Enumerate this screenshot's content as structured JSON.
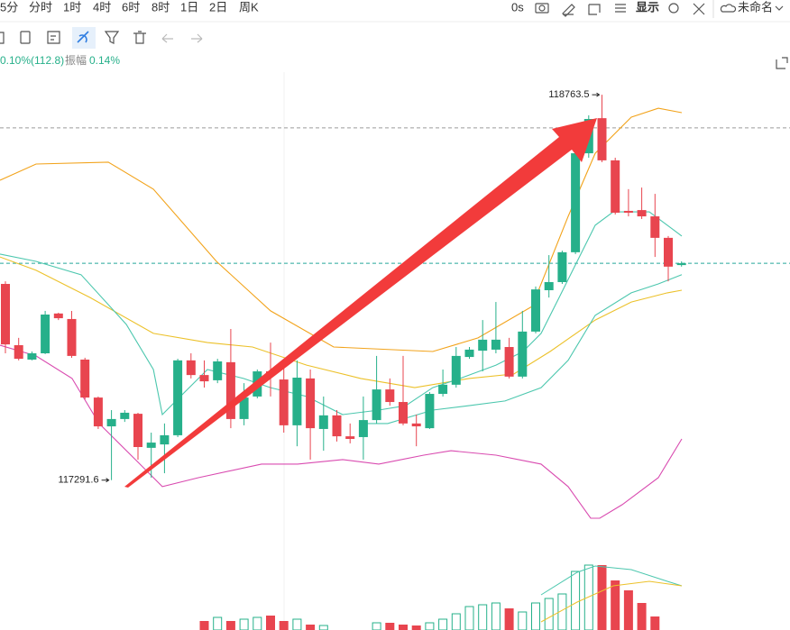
{
  "toolbar": {
    "intervals": [
      "5分",
      "分时",
      "1时",
      "4时",
      "6时",
      "8时",
      "1日",
      "2日",
      "周K"
    ],
    "timer": "0s",
    "display": "显示",
    "workspace": "未命名"
  },
  "info": {
    "change": "0.10%(112.8)",
    "amplitude_label": "振幅",
    "amplitude": "0.14%"
  },
  "chart_data": {
    "type": "candlestick",
    "ylim": [
      117060,
      118850
    ],
    "up_color": "#26b08a",
    "down_color": "#e8454f",
    "categories": [
      null,
      null,
      null,
      null,
      null,
      null,
      null,
      null,
      null,
      null,
      null,
      null,
      null,
      null,
      null,
      null,
      null,
      null,
      null,
      null,
      null,
      null,
      null,
      null,
      null,
      null,
      null,
      null,
      null,
      null,
      null,
      null,
      null,
      null,
      null,
      null,
      null,
      null,
      null,
      null,
      null,
      null,
      null,
      null,
      null,
      null,
      null,
      null,
      null,
      null,
      null,
      null
    ],
    "open": [
      118041,
      117807,
      117752,
      117776,
      117928,
      117907,
      117752,
      117607,
      117497,
      117525,
      117545,
      117415,
      117428,
      117463,
      117749,
      117693,
      117673,
      117742,
      117525,
      117611,
      117707,
      117676,
      117501,
      117680,
      117487,
      117539,
      117459,
      117456,
      117521,
      117638,
      117590,
      117508,
      117490,
      117621,
      117656,
      117762,
      117786,
      117790,
      117800,
      117687,
      117859,
      118017,
      118048,
      118162,
      118540,
      118674,
      118513,
      118320,
      118323,
      118299,
      118217,
      118113
    ],
    "high": [
      118051,
      117835,
      117783,
      117938,
      117931,
      117938,
      117759,
      117611,
      117559,
      117559,
      117549,
      117473,
      117508,
      117755,
      117776,
      117749,
      117755,
      117869,
      117662,
      117714,
      117817,
      117749,
      117749,
      117714,
      117611,
      117559,
      117508,
      117611,
      117766,
      117680,
      117766,
      117542,
      117628,
      117714,
      117800,
      117800,
      117903,
      117972,
      117835,
      117938,
      118031,
      118151,
      118168,
      118547,
      118685,
      118763.5,
      118523,
      118403,
      118409,
      118385,
      118224,
      118127
    ],
    "low": [
      117776,
      117749,
      117749,
      117773,
      117903,
      117759,
      117600,
      117487,
      117291.6,
      117514,
      117370,
      117301,
      117318,
      117456,
      117680,
      117645,
      117662,
      117490,
      117501,
      117604,
      117611,
      117473,
      117421,
      117370,
      117404,
      117439,
      117432,
      117370,
      117508,
      117576,
      117501,
      117421,
      117487,
      117611,
      117645,
      117755,
      117707,
      117776,
      117680,
      117680,
      117852,
      117989,
      118041,
      118155,
      118523,
      118506,
      118306,
      118299,
      118289,
      118144,
      118051,
      118107
    ],
    "close": [
      117810,
      117755,
      117776,
      117924,
      117910,
      117766,
      117607,
      117497,
      117525,
      117549,
      117418,
      117435,
      117463,
      117749,
      117693,
      117669,
      117745,
      117525,
      117607,
      117707,
      117693,
      117501,
      117683,
      117490,
      117539,
      117459,
      117449,
      117521,
      117638,
      117590,
      117508,
      117497,
      117621,
      117656,
      117766,
      117790,
      117828,
      117828,
      117687,
      117859,
      118020,
      118048,
      118162,
      118540,
      118671,
      118513,
      118313,
      118313,
      118299,
      118217,
      118107,
      118120
    ],
    "lines": [
      {
        "color": "#f2a31b",
        "x": [
          -0.41,
          2.31,
          7.76,
          11.16,
          15.92,
          20.0,
          24.76,
          32.24,
          35.65,
          39.73,
          42.45,
          44.49,
          47.21,
          49.25,
          51.02
        ],
        "values": [
          118437,
          118499,
          118506,
          118403,
          118127,
          117938,
          117800,
          117783,
          117835,
          117955,
          118299,
          118540,
          118678,
          118712,
          118695
        ]
      },
      {
        "color": "#ecc12a",
        "x": [
          -0.41,
          2.31,
          6.39,
          11.16,
          15.24,
          18.64,
          22.72,
          26.8,
          30.88,
          34.97,
          38.37,
          41.09,
          44.49,
          47.21,
          49.93,
          51.02
        ],
        "values": [
          118144,
          118093,
          117989,
          117852,
          117817,
          117800,
          117731,
          117680,
          117645,
          117680,
          117697,
          117783,
          117903,
          117972,
          118007,
          118017
        ]
      },
      {
        "color": "#4cc7ae",
        "x": [
          -0.41,
          2.31,
          5.71,
          9.12,
          11.16,
          11.84,
          13.2,
          15.24,
          17.96,
          20.0,
          22.72,
          25.44,
          28.16,
          30.2,
          32.24,
          34.29,
          37.01,
          39.05,
          40.41,
          41.77,
          43.13,
          44.49,
          45.85,
          48.57,
          49.93,
          51.02
        ],
        "values": [
          118155,
          118127,
          118076,
          117886,
          117714,
          117542,
          117611,
          117714,
          117680,
          117645,
          117611,
          117542,
          117559,
          117576,
          117645,
          117680,
          117731,
          117783,
          117852,
          117989,
          118127,
          118265,
          118316,
          118316,
          118265,
          118224
        ]
      },
      {
        "color": "#4cc7ae",
        "x": [
          26.8,
          28.84,
          32.24,
          34.97,
          37.69,
          40.41,
          42.45,
          44.49,
          47.21,
          49.25,
          51.02
        ],
        "values": [
          117508,
          117508,
          117559,
          117576,
          117594,
          117645,
          117749,
          117921,
          118007,
          118041,
          118076
        ]
      },
      {
        "color": "#d94bb0",
        "x": [
          -0.41,
          2.31,
          5.03,
          7.07,
          9.8,
          11.84,
          14.56,
          19.32,
          22.04,
          25.44,
          28.16,
          31.56,
          33.61,
          37.01,
          40.41,
          42.45,
          44.15,
          44.83,
          46.53,
          49.25,
          51.02
        ],
        "values": [
          117807,
          117766,
          117680,
          117508,
          117370,
          117267,
          117301,
          117353,
          117353,
          117370,
          117353,
          117387,
          117404,
          117387,
          117353,
          117267,
          117146,
          117146,
          117198,
          117301,
          117449
        ]
      }
    ],
    "ref_lines": [
      {
        "value": 118637,
        "color": "#9a9a9a"
      },
      {
        "value": 118120,
        "color": "#26a69a"
      }
    ],
    "volume": {
      "ylim": [
        0,
        80
      ],
      "values": [
        null,
        null,
        null,
        null,
        null,
        null,
        null,
        null,
        null,
        null,
        null,
        null,
        null,
        null,
        null,
        10,
        14,
        10,
        12,
        14,
        16,
        10,
        12,
        6,
        5,
        null,
        null,
        null,
        8,
        8,
        6,
        5,
        8,
        12,
        18,
        26,
        28,
        30,
        24,
        20,
        30,
        35,
        40,
        65,
        72,
        72,
        55,
        44,
        30,
        15,
        null,
        null
      ],
      "lines": [
        {
          "color": "#4cc7ae",
          "x": [
            40.41,
            43.13,
            44.49,
            47.21,
            49.93,
            51.02
          ],
          "values": [
            39,
            64,
            71,
            67,
            54,
            49
          ]
        },
        {
          "color": "#ecc12a",
          "x": [
            40.41,
            43.13,
            45.85,
            48.57,
            51.02
          ],
          "values": [
            9,
            31,
            49,
            54,
            49
          ]
        }
      ]
    }
  }
}
